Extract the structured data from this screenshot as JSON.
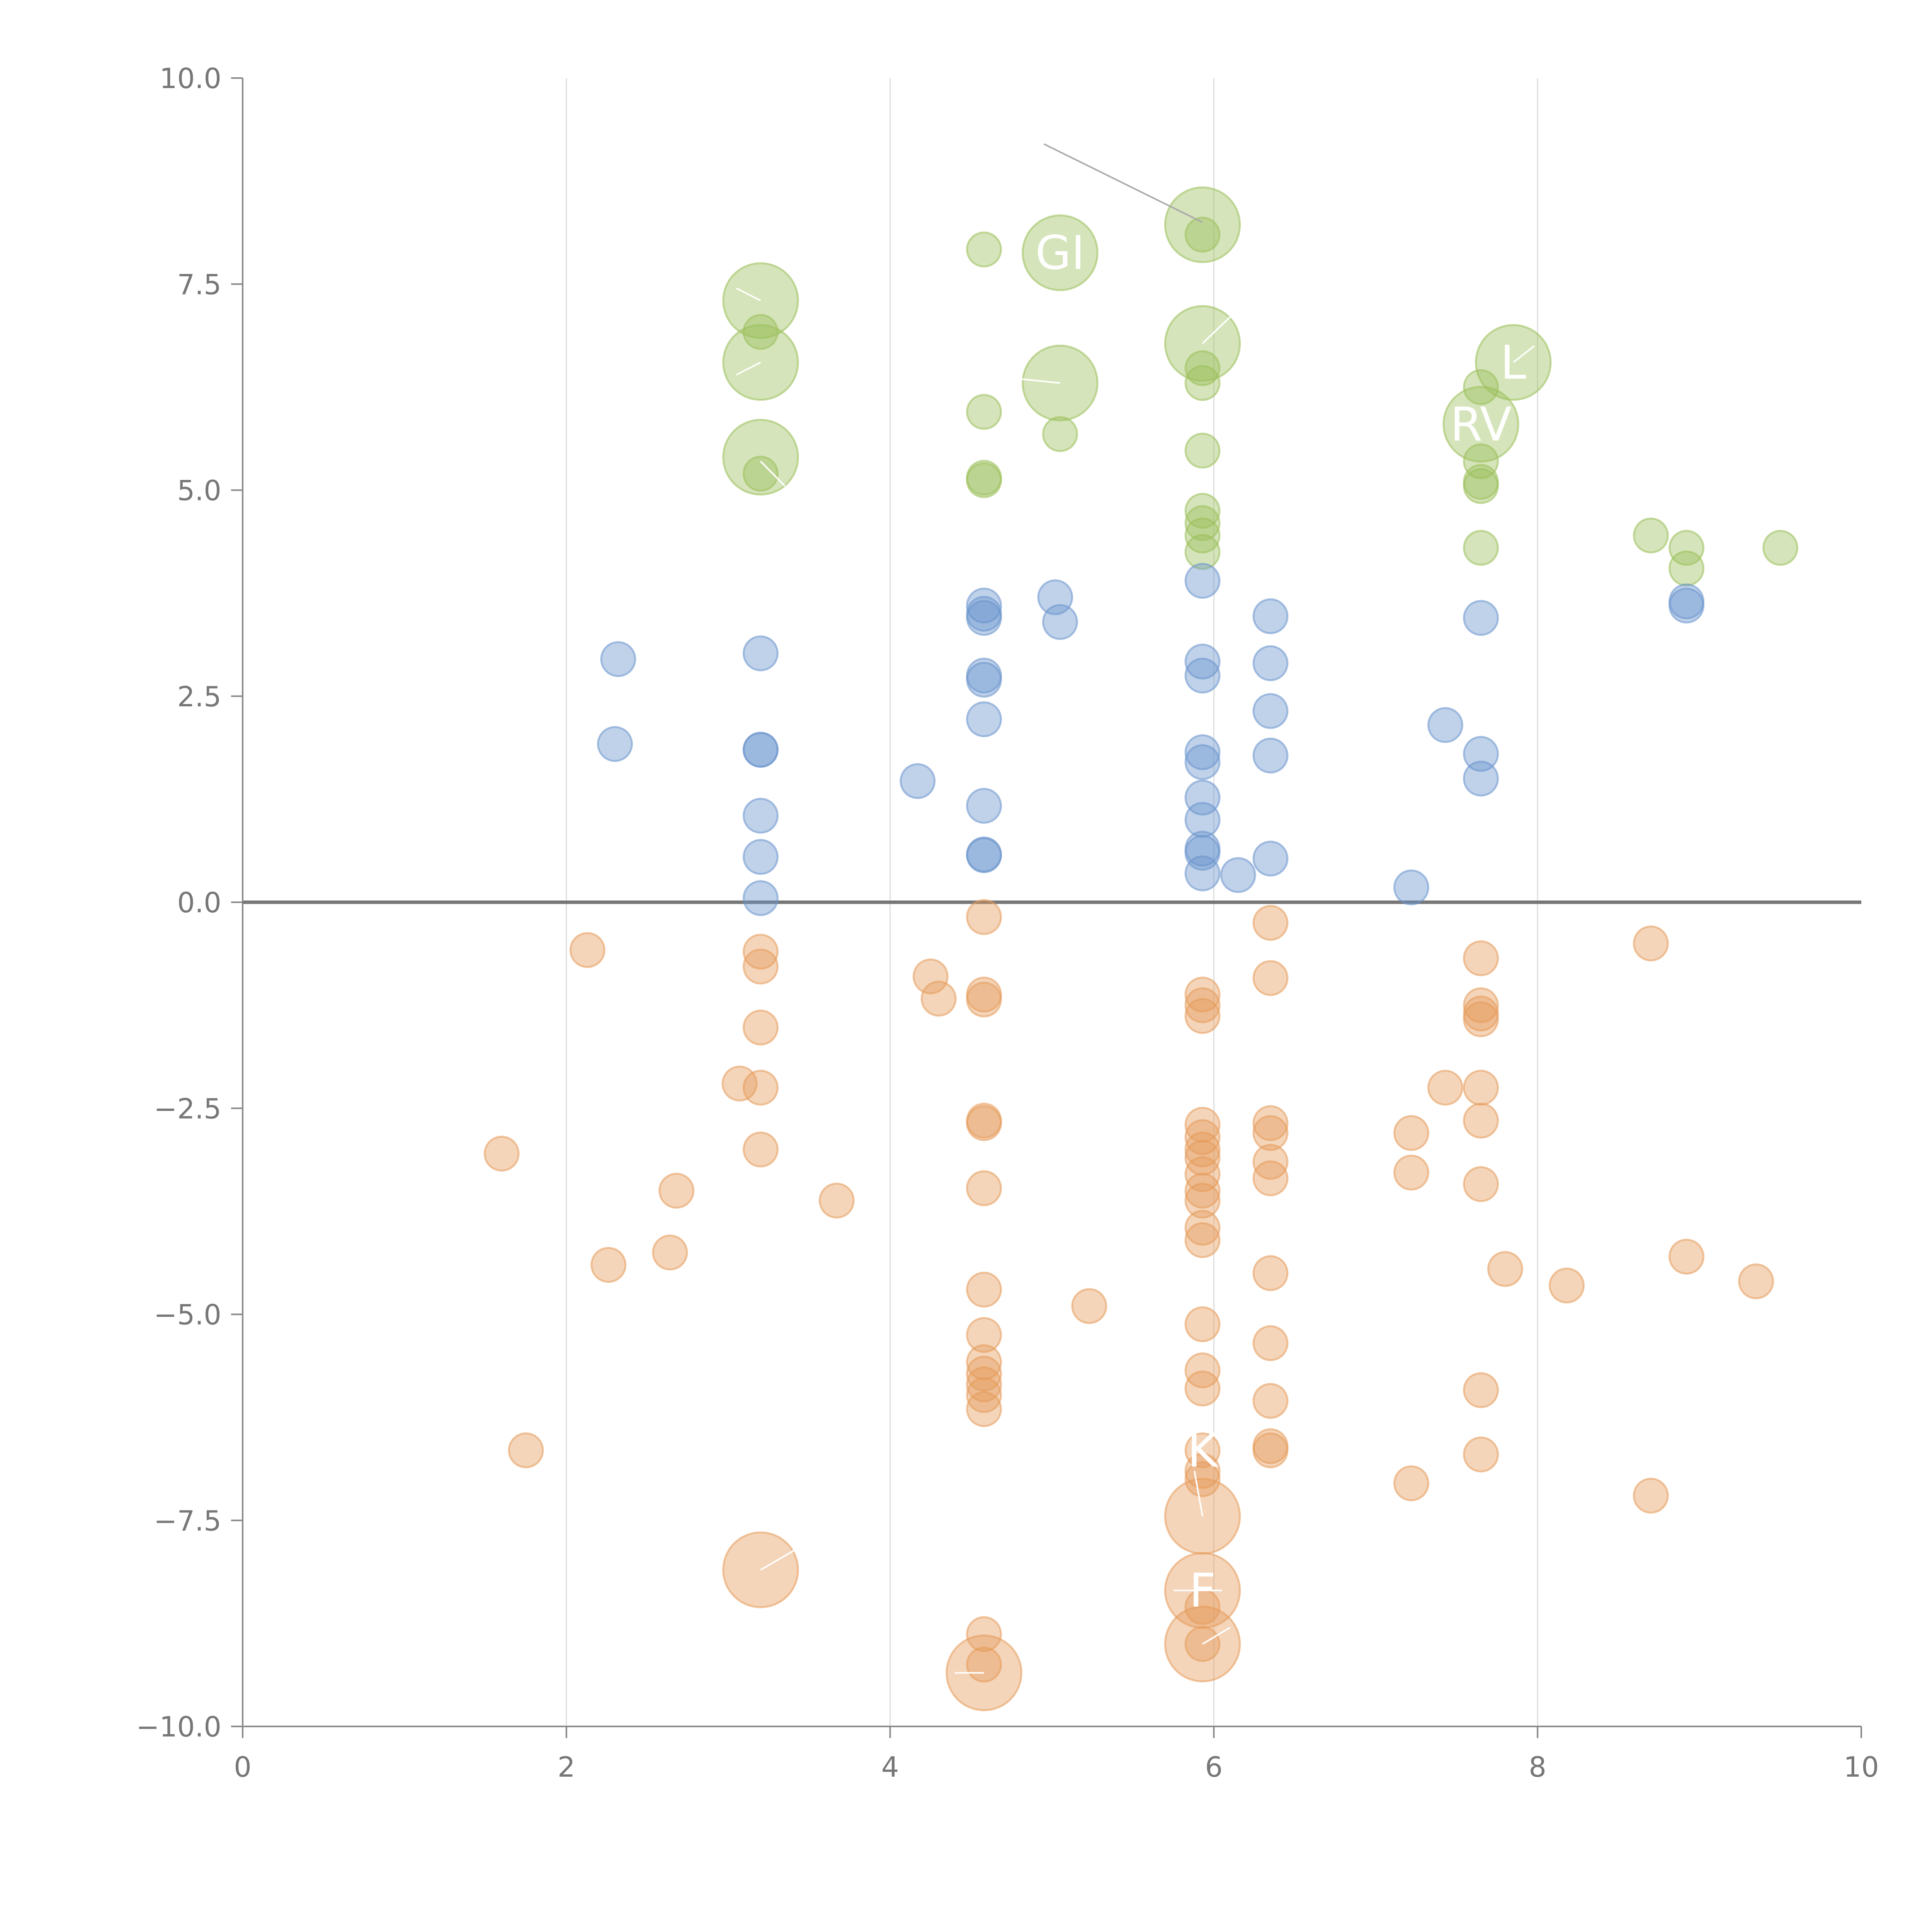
{
  "chart_data": {
    "type": "scatter",
    "title": "",
    "xlabel": "",
    "ylabel": "",
    "xlim": [
      0,
      10
    ],
    "ylim": [
      -10,
      10
    ],
    "x_ticks": [
      0,
      2,
      4,
      6,
      8,
      10
    ],
    "x_tick_labels": [
      "0",
      "2",
      "4",
      "6",
      "8",
      "10"
    ],
    "y_ticks": [
      -10,
      -7.5,
      -5,
      -2.5,
      0,
      2.5,
      5,
      7.5,
      10
    ],
    "y_tick_labels": [
      "−10.0",
      "−7.5",
      "−5.0",
      "−2.5",
      "0.0",
      "2.5",
      "5.0",
      "7.5",
      "10.0"
    ],
    "vertical_gridlines_at": [
      2,
      4,
      6,
      8
    ],
    "baseline_y": 0,
    "series": [
      {
        "name": "positive-high",
        "color": "#9bbf5a",
        "points": [
          [
            4.58,
            7.92,
            1
          ],
          [
            3.2,
            7.3,
            2.2
          ],
          [
            3.2,
            6.92,
            1
          ],
          [
            3.2,
            6.55,
            2.2
          ],
          [
            3.2,
            5.4,
            2.2
          ],
          [
            3.2,
            5.2,
            1
          ],
          [
            5.05,
            7.88,
            2.2
          ],
          [
            5.05,
            6.3,
            2.2
          ],
          [
            5.05,
            5.68,
            1
          ],
          [
            4.58,
            5.95,
            1
          ],
          [
            4.58,
            5.15,
            1
          ],
          [
            4.58,
            5.12,
            1
          ],
          [
            5.93,
            8.22,
            2.2
          ],
          [
            5.93,
            8.1,
            1
          ],
          [
            5.93,
            6.78,
            2.2
          ],
          [
            5.93,
            6.48,
            1
          ],
          [
            5.93,
            6.3,
            1
          ],
          [
            5.93,
            5.48,
            1
          ],
          [
            5.93,
            4.75,
            1
          ],
          [
            5.93,
            4.6,
            1
          ],
          [
            5.93,
            4.45,
            1
          ],
          [
            5.93,
            4.25,
            1
          ],
          [
            7.85,
            6.55,
            2.2
          ],
          [
            7.65,
            5.8,
            2.2
          ],
          [
            7.65,
            6.25,
            1
          ],
          [
            7.65,
            5.35,
            1
          ],
          [
            7.65,
            5.1,
            1
          ],
          [
            7.65,
            5.05,
            1
          ],
          [
            7.65,
            4.3,
            1
          ],
          [
            8.7,
            4.45,
            1
          ],
          [
            8.92,
            4.3,
            1
          ],
          [
            8.92,
            4.05,
            1
          ],
          [
            9.5,
            4.3,
            1
          ]
        ]
      },
      {
        "name": "positive-low",
        "color": "#6a94cc",
        "points": [
          [
            2.32,
            2.95,
            1
          ],
          [
            2.3,
            1.92,
            1
          ],
          [
            3.2,
            3.02,
            1
          ],
          [
            3.2,
            1.85,
            1
          ],
          [
            3.2,
            1.85,
            1
          ],
          [
            3.2,
            1.05,
            1
          ],
          [
            3.2,
            0.55,
            1
          ],
          [
            3.2,
            0.05,
            1
          ],
          [
            4.58,
            3.6,
            1
          ],
          [
            4.58,
            3.5,
            1
          ],
          [
            4.58,
            3.45,
            1
          ],
          [
            4.58,
            2.75,
            1
          ],
          [
            4.58,
            2.7,
            1
          ],
          [
            4.58,
            2.22,
            1
          ],
          [
            4.58,
            1.17,
            1
          ],
          [
            4.58,
            0.58,
            1
          ],
          [
            4.58,
            0.57,
            1
          ],
          [
            4.17,
            1.47,
            1
          ],
          [
            5.02,
            3.7,
            1
          ],
          [
            5.05,
            3.4,
            1
          ],
          [
            5.93,
            3.9,
            1
          ],
          [
            5.93,
            2.92,
            1
          ],
          [
            5.93,
            2.75,
            1
          ],
          [
            5.93,
            1.82,
            1
          ],
          [
            5.93,
            1.7,
            1
          ],
          [
            5.93,
            1.27,
            1
          ],
          [
            5.93,
            1.0,
            1
          ],
          [
            5.93,
            0.65,
            1
          ],
          [
            5.93,
            0.6,
            1
          ],
          [
            5.93,
            0.35,
            1
          ],
          [
            6.15,
            0.33,
            1
          ],
          [
            6.35,
            3.47,
            1
          ],
          [
            6.35,
            2.9,
            1
          ],
          [
            6.35,
            2.32,
            1
          ],
          [
            6.35,
            1.78,
            1
          ],
          [
            6.35,
            0.53,
            1
          ],
          [
            7.22,
            0.18,
            1
          ],
          [
            7.43,
            2.15,
            1
          ],
          [
            7.65,
            3.45,
            1
          ],
          [
            7.65,
            1.8,
            1
          ],
          [
            7.65,
            1.5,
            1
          ],
          [
            8.92,
            3.65,
            1
          ],
          [
            8.92,
            3.6,
            1
          ]
        ]
      },
      {
        "name": "negative",
        "color": "#e59a5a",
        "points": [
          [
            1.6,
            -3.05,
            1
          ],
          [
            1.75,
            -6.65,
            1
          ],
          [
            2.13,
            -0.58,
            1
          ],
          [
            2.26,
            -4.4,
            1
          ],
          [
            2.64,
            -4.25,
            1
          ],
          [
            2.68,
            -3.5,
            1
          ],
          [
            3.07,
            -2.2,
            1
          ],
          [
            3.2,
            -0.6,
            1
          ],
          [
            3.2,
            -0.78,
            1
          ],
          [
            3.2,
            -1.52,
            1
          ],
          [
            3.2,
            -2.25,
            1
          ],
          [
            3.2,
            -3.0,
            1
          ],
          [
            3.2,
            -8.1,
            2.2
          ],
          [
            3.67,
            -3.62,
            1
          ],
          [
            4.25,
            -0.9,
            1
          ],
          [
            4.3,
            -1.17,
            1
          ],
          [
            4.58,
            -0.18,
            1
          ],
          [
            4.58,
            -1.12,
            1
          ],
          [
            4.58,
            -1.18,
            1
          ],
          [
            4.58,
            -2.65,
            1
          ],
          [
            4.58,
            -2.68,
            1
          ],
          [
            4.58,
            -3.47,
            1
          ],
          [
            4.58,
            -4.7,
            1
          ],
          [
            4.58,
            -5.25,
            1
          ],
          [
            4.58,
            -5.58,
            1
          ],
          [
            4.58,
            -5.72,
            1
          ],
          [
            4.58,
            -5.85,
            1
          ],
          [
            4.58,
            -5.98,
            1
          ],
          [
            4.58,
            -6.15,
            1
          ],
          [
            4.58,
            -8.88,
            1
          ],
          [
            4.58,
            -9.25,
            1
          ],
          [
            4.58,
            -9.35,
            2.2
          ],
          [
            5.23,
            -4.9,
            1
          ],
          [
            5.93,
            -1.12,
            1
          ],
          [
            5.93,
            -1.25,
            1
          ],
          [
            5.93,
            -1.38,
            1
          ],
          [
            5.93,
            -2.7,
            1
          ],
          [
            5.93,
            -2.85,
            1
          ],
          [
            5.93,
            -3.0,
            1
          ],
          [
            5.93,
            -3.1,
            1
          ],
          [
            5.93,
            -3.3,
            1
          ],
          [
            5.93,
            -3.5,
            1
          ],
          [
            5.93,
            -3.62,
            1
          ],
          [
            5.93,
            -3.95,
            1
          ],
          [
            5.93,
            -4.1,
            1
          ],
          [
            5.93,
            -5.12,
            1
          ],
          [
            5.93,
            -5.68,
            1
          ],
          [
            5.93,
            -5.9,
            1
          ],
          [
            5.93,
            -6.65,
            1
          ],
          [
            5.93,
            -6.9,
            1
          ],
          [
            5.93,
            -7.0,
            1
          ],
          [
            5.93,
            -7.45,
            2.2
          ],
          [
            5.93,
            -8.35,
            2.2
          ],
          [
            5.93,
            -8.55,
            1
          ],
          [
            5.93,
            -9.0,
            1
          ],
          [
            5.93,
            -9.0,
            2.2
          ],
          [
            6.35,
            -0.25,
            1
          ],
          [
            6.35,
            -0.92,
            1
          ],
          [
            6.35,
            -2.68,
            1
          ],
          [
            6.35,
            -2.8,
            1
          ],
          [
            6.35,
            -3.15,
            1
          ],
          [
            6.35,
            -3.35,
            1
          ],
          [
            6.35,
            -4.5,
            1
          ],
          [
            6.35,
            -5.35,
            1
          ],
          [
            6.35,
            -6.05,
            1
          ],
          [
            6.35,
            -6.6,
            1
          ],
          [
            6.35,
            -6.65,
            1
          ],
          [
            7.22,
            -2.8,
            1
          ],
          [
            7.22,
            -3.28,
            1
          ],
          [
            7.22,
            -7.05,
            1
          ],
          [
            7.43,
            -2.25,
            1
          ],
          [
            7.65,
            -0.68,
            1
          ],
          [
            7.65,
            -1.25,
            1
          ],
          [
            7.65,
            -1.35,
            1
          ],
          [
            7.65,
            -1.42,
            1
          ],
          [
            7.65,
            -2.25,
            1
          ],
          [
            7.65,
            -2.65,
            1
          ],
          [
            7.65,
            -3.42,
            1
          ],
          [
            7.65,
            -5.92,
            1
          ],
          [
            7.65,
            -6.7,
            1
          ],
          [
            7.8,
            -4.45,
            1
          ],
          [
            8.18,
            -4.65,
            1
          ],
          [
            8.7,
            -0.5,
            1
          ],
          [
            8.7,
            -7.2,
            1
          ],
          [
            8.92,
            -4.3,
            1
          ],
          [
            9.35,
            -4.6,
            1
          ]
        ]
      }
    ],
    "annotations": [
      {
        "text": "GI",
        "x": 5.05,
        "y": 7.88
      },
      {
        "text": "RV",
        "x": 7.65,
        "y": 5.8
      },
      {
        "text": "L",
        "x": 7.85,
        "y": 6.55
      },
      {
        "text": "K",
        "x": 5.93,
        "y": -6.65
      },
      {
        "text": "F",
        "x": 5.93,
        "y": -8.35
      }
    ]
  }
}
